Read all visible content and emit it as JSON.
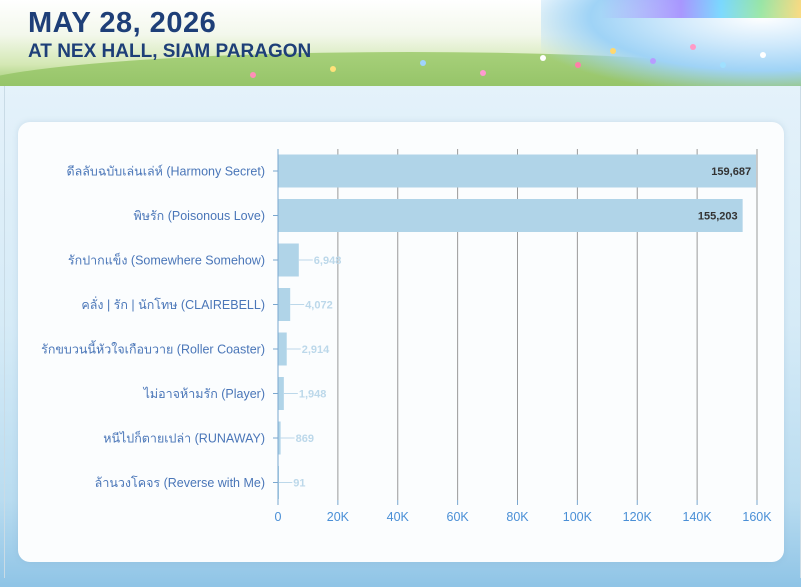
{
  "banner": {
    "date": "MAY 28, 2026",
    "venue": "AT NEX HALL, SIAM PARAGON"
  },
  "colors": {
    "headline": "#1e3f78",
    "bar": "#b0d4e8",
    "axis_labels": "#4a8fd6",
    "category_labels": "#4a76b8",
    "grid": "#9a9a9a"
  },
  "chart_data": {
    "type": "bar",
    "orientation": "horizontal",
    "categories": [
      "ดีลลับฉบับเล่นเล่ห์ (Harmony Secret)",
      "พิษรัก (Poisonous Love)",
      "รักปากแข็ง (Somewhere Somehow)",
      "คลั่ง | รัก | นักโทษ (CLAIREBELL)",
      "รักขบวนนี้หัวใจเกือบวาย (Roller Coaster)",
      "ไม่อาจห้ามรัก (Player)",
      "หนีไปก็ตายเปล่า (RUNAWAY)",
      "ล้านวงโคจร (Reverse with Me)"
    ],
    "values": [
      159687,
      155203,
      6948,
      4072,
      2914,
      1948,
      869,
      91
    ],
    "value_labels": [
      "159,687",
      "155,203",
      "6,948",
      "4,072",
      "2,914",
      "1,948",
      "869",
      "91"
    ],
    "xlim": [
      0,
      160000
    ],
    "xticks": [
      0,
      20000,
      40000,
      60000,
      80000,
      100000,
      120000,
      140000,
      160000
    ],
    "xtick_labels": [
      "0",
      "20K",
      "40K",
      "60K",
      "80K",
      "100K",
      "120K",
      "140K",
      "160K"
    ],
    "grid": "vertical",
    "legend": "none"
  }
}
